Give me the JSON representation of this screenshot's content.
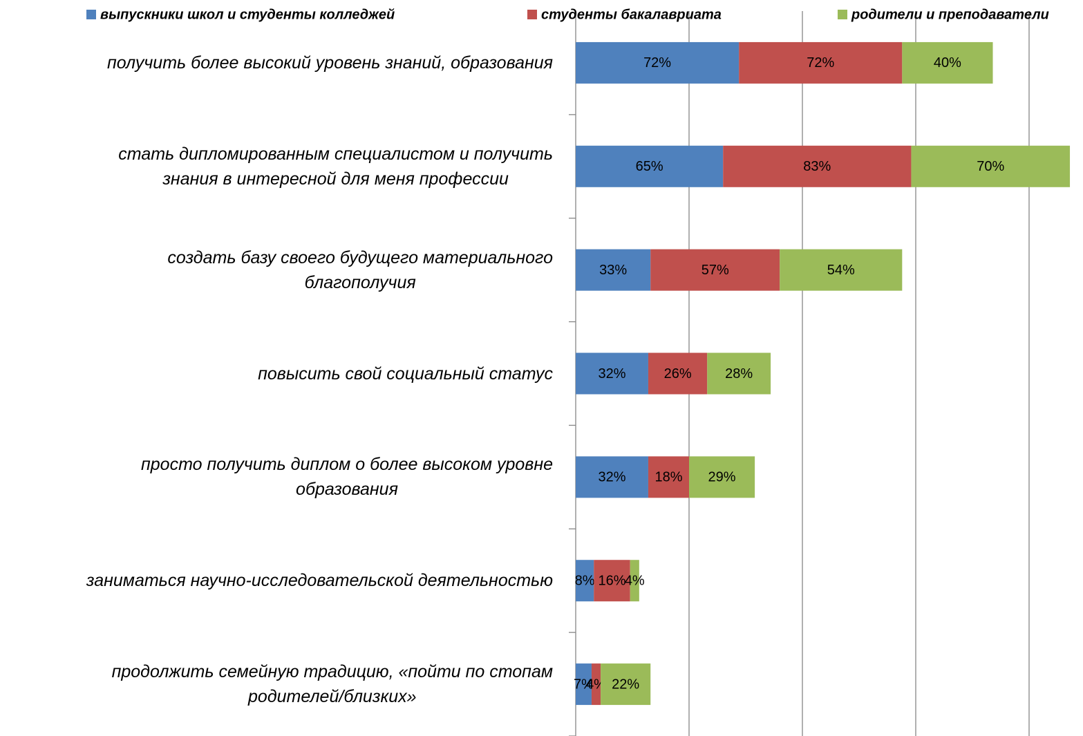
{
  "chart_data": {
    "type": "stacked-barh",
    "categories": [
      "получить более высокий уровень знаний, образования",
      "стать дипломированным специалистом и получить\nзнания в интересной для меня профессии",
      "создать базу своего будущего материального\nблагополучия",
      "повысить свой социальный статус",
      "просто получить диплом о более высоком уровне\nобразования",
      "заниматься научно-исследовательской деятельностью",
      "продолжить семейную традицию, «пойти по стопам\nродителей/близких»"
    ],
    "series": [
      {
        "name": "выпускники школ и студенты колледжей",
        "color": "#4f81bd",
        "values": [
          72,
          65,
          33,
          32,
          32,
          8,
          7
        ],
        "value_labels": [
          "72%",
          "65%",
          "33%",
          "32%",
          "32%",
          "8%",
          "7%"
        ]
      },
      {
        "name": "студенты бакалавриата",
        "color": "#c0504d",
        "values": [
          72,
          83,
          57,
          26,
          18,
          16,
          4
        ],
        "value_labels": [
          "72%",
          "83%",
          "57%",
          "26%",
          "18%",
          "16%",
          "4%"
        ]
      },
      {
        "name": "родители и преподаватели",
        "color": "#9bbb59",
        "values": [
          40,
          70,
          54,
          28,
          29,
          4,
          22
        ],
        "value_labels": [
          "40%",
          "70%",
          "54%",
          "28%",
          "29%",
          "4%",
          "22%"
        ]
      }
    ],
    "xlim": [
      0,
      250
    ],
    "xticks": [
      0,
      50,
      100,
      150,
      200
    ],
    "grid": true,
    "legend": "top"
  }
}
